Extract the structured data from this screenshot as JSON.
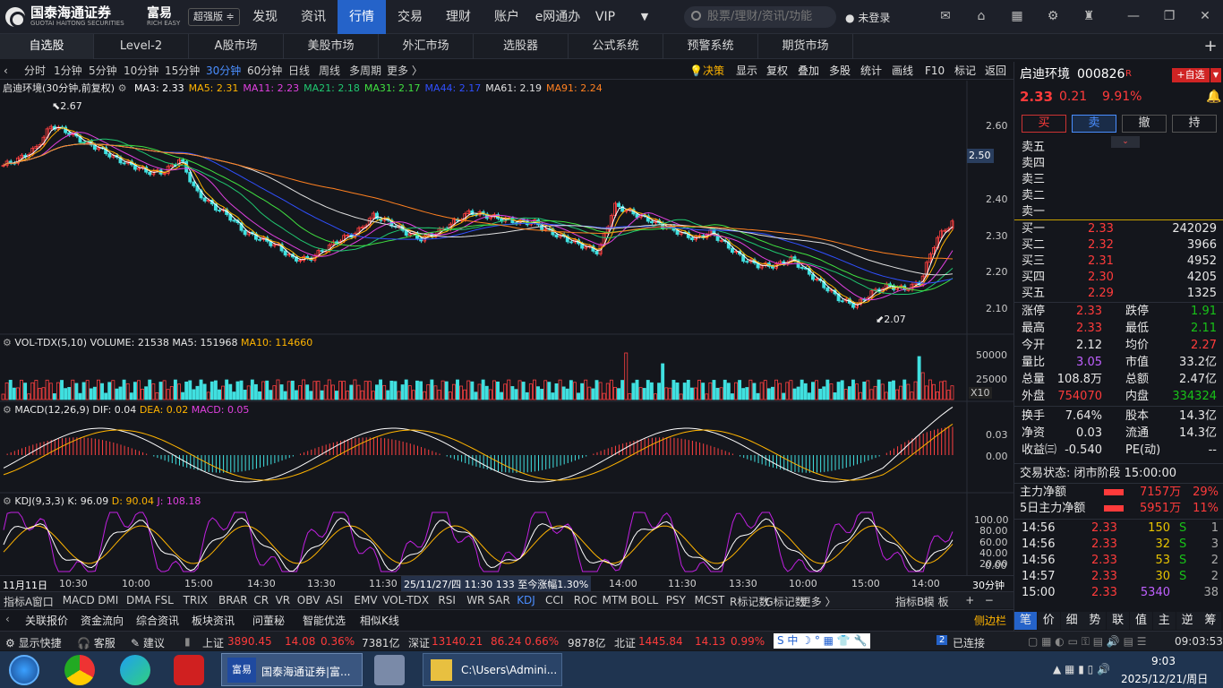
{
  "app": {
    "brand": "国泰海通证券",
    "brand_sub": "GUOTAI HAITONG SECURITIES",
    "brand2": "富易",
    "brand2_sub": "RICH EASY",
    "version": "超强版 ≑"
  },
  "nav": [
    "发现",
    "资讯",
    "行情",
    "交易",
    "理财",
    "账户",
    "e网通办",
    "VIP"
  ],
  "search": {
    "placeholder": "股票/理财/资讯/功能"
  },
  "login": "未登录",
  "tabs": [
    "自选股",
    "Level-2",
    "A股市场",
    "美股市场",
    "外汇市场",
    "选股器",
    "公式系统",
    "预警系统",
    "期货市场"
  ],
  "periods": [
    "分时",
    "1分钟",
    "5分钟",
    "10分钟",
    "15分钟",
    "30分钟",
    "60分钟",
    "日线",
    "周线",
    "多周期",
    "更多 〉"
  ],
  "tools": [
    "决策",
    "显示",
    "复权",
    "叠加",
    "多股",
    "统计",
    "画线",
    "F10",
    "标记",
    "返回"
  ],
  "chart": {
    "title": "启迪环境(30分钟,前复权)",
    "ma": [
      {
        "l": "MA3: 2.33",
        "c": "#ffffff"
      },
      {
        "l": "MA5: 2.31",
        "c": "#ffb400"
      },
      {
        "l": "MA11: 2.23",
        "c": "#e040e0"
      },
      {
        "l": "MA21: 2.18",
        "c": "#20c870"
      },
      {
        "l": "MA31: 2.17",
        "c": "#40e040"
      },
      {
        "l": "MA44: 2.17",
        "c": "#3050ff"
      },
      {
        "l": "MA61: 2.19",
        "c": "#e0e0e0"
      },
      {
        "l": "MA91: 2.24",
        "c": "#ff8020"
      }
    ],
    "high_label": "2.67",
    "low_label": "2.07",
    "current_tag": "2.50",
    "price_ticks": [
      "2.60",
      "2.50",
      "2.40",
      "2.30",
      "2.20",
      "2.10"
    ],
    "vol_legend": "VOL-TDX(5,10)",
    "vol_value": "VOLUME: 21538",
    "vol_ma5": "MA5: 151968",
    "vol_ma10": "MA10: 114660",
    "vol_ticks": [
      "50000",
      "25000"
    ],
    "vol_unit": "X10",
    "macd_legend": "MACD(12,26,9)",
    "macd_dif": "DIF: 0.04",
    "macd_dea": "DEA: 0.02",
    "macd_macd": "MACD: 0.05",
    "macd_ticks": [
      "0.03",
      "0.00"
    ],
    "kdj_legend": "KDJ(9,3,3)",
    "kdj_k": "K: 96.09",
    "kdj_d": "D: 90.04",
    "kdj_j": "J: 108.18",
    "kdj_ticks": [
      "100.00",
      "80.00",
      "60.00",
      "40.00",
      "20.00",
      "0.00"
    ]
  },
  "chart_data": {
    "type": "line",
    "title": "启迪环境(30分钟,前复权)",
    "ylim": [
      2.03,
      2.7
    ],
    "close": [
      2.5,
      2.52,
      2.55,
      2.62,
      2.6,
      2.57,
      2.55,
      2.52,
      2.5,
      2.48,
      2.48,
      2.52,
      2.42,
      2.38,
      2.35,
      2.3,
      2.28,
      2.26,
      2.22,
      2.22,
      2.25,
      2.28,
      2.3,
      2.35,
      2.33,
      2.3,
      2.28,
      2.3,
      2.33,
      2.36,
      2.35,
      2.34,
      2.33,
      2.33,
      2.3,
      2.28,
      2.26,
      2.24,
      2.38,
      2.36,
      2.34,
      2.32,
      2.3,
      2.28,
      2.3,
      2.26,
      2.22,
      2.2,
      2.2,
      2.22,
      2.18,
      2.14,
      2.1,
      2.08,
      2.12,
      2.14,
      2.13,
      2.15,
      2.28,
      2.33
    ]
  },
  "xaxis": [
    "11月11日",
    "10:30",
    "10:00",
    "15:00",
    "14:30",
    "13:30",
    "11:30",
    "25/11/27/四 11:30 133 至今涨幅1.30%",
    "14:00",
    "11:30",
    "13:30",
    "10:00",
    "15:00",
    "14:00",
    "30分钟"
  ],
  "indicators": [
    "指标A",
    "窗口",
    "MACD",
    "DMI",
    "DMA",
    "FSL",
    "TRIX",
    "BRAR",
    "CR",
    "VR",
    "OBV",
    "ASI",
    "EMV",
    "VOL-TDX",
    "RSI",
    "WR",
    "SAR",
    "KDJ",
    "CCI",
    "ROC",
    "MTM",
    "BOLL",
    "PSY",
    "MCST",
    "R标记数",
    "G标记数",
    "更多 〉",
    "指标B",
    "模 板",
    "+",
    "−"
  ],
  "funcs": [
    "关联报价",
    "资金流向",
    "综合资讯",
    "板块资讯",
    "问董秘",
    "智能优选",
    "相似K线"
  ],
  "side_tab": "侧边栏",
  "quote": {
    "name": "启迪环境",
    "code": "000826",
    "flag": "R",
    "add": "+自选",
    "price": "2.33",
    "chg": "0.21",
    "pct": "9.91%",
    "btns": [
      "买",
      "卖",
      "撤",
      "持"
    ],
    "sell": [
      "卖五",
      "卖四",
      "卖三",
      "卖二",
      "卖一"
    ],
    "buy": [
      {
        "n": "买一",
        "p": "2.33",
        "v": "242029"
      },
      {
        "n": "买二",
        "p": "2.32",
        "v": "3966"
      },
      {
        "n": "买三",
        "p": "2.31",
        "v": "4952"
      },
      {
        "n": "买四",
        "p": "2.30",
        "v": "4205"
      },
      {
        "n": "买五",
        "p": "2.29",
        "v": "1325"
      }
    ],
    "stats": [
      [
        {
          "l": "涨停",
          "v": "2.33",
          "c": "red"
        },
        {
          "l": "跌停",
          "v": "1.91",
          "c": "green"
        }
      ],
      [
        {
          "l": "最高",
          "v": "2.33",
          "c": "red"
        },
        {
          "l": "最低",
          "v": "2.11",
          "c": "green"
        }
      ],
      [
        {
          "l": "今开",
          "v": "2.12",
          "c": "white"
        },
        {
          "l": "均价",
          "v": "2.27",
          "c": "red"
        }
      ],
      [
        {
          "l": "量比",
          "v": "3.05",
          "c": "pur"
        },
        {
          "l": "市值",
          "v": "33.2亿",
          "c": "white"
        }
      ],
      [
        {
          "l": "总量",
          "v": "108.8万",
          "c": "white"
        },
        {
          "l": "总额",
          "v": "2.47亿",
          "c": "white"
        }
      ],
      [
        {
          "l": "外盘",
          "v": "754070",
          "c": "red"
        },
        {
          "l": "内盘",
          "v": "334324",
          "c": "green"
        }
      ]
    ],
    "stats2": [
      [
        {
          "l": "换手",
          "v": "7.64%",
          "c": "white"
        },
        {
          "l": "股本",
          "v": "14.3亿",
          "c": "white"
        }
      ],
      [
        {
          "l": "净资",
          "v": "0.03",
          "c": "white"
        },
        {
          "l": "流通",
          "v": "14.3亿",
          "c": "white"
        }
      ],
      [
        {
          "l": "收益㈢",
          "v": "-0.540",
          "c": "white"
        },
        {
          "l": "PE(动)",
          "v": "--",
          "c": "white"
        }
      ]
    ],
    "status": "交易状态: 闭市阶段 15:00:00",
    "flow": [
      {
        "l": "主力净额",
        "v": "7157万",
        "p": "29%"
      },
      {
        "l": "5日主力净额",
        "v": "5951万",
        "p": "11%"
      }
    ],
    "ticks": [
      {
        "t": "14:56",
        "p": "2.33",
        "v": "150",
        "s": "S",
        "n": "1"
      },
      {
        "t": "14:56",
        "p": "2.33",
        "v": "32",
        "s": "S",
        "n": "3"
      },
      {
        "t": "14:56",
        "p": "2.33",
        "v": "53",
        "s": "S",
        "n": "2"
      },
      {
        "t": "14:57",
        "p": "2.33",
        "v": "30",
        "s": "S",
        "n": "2"
      },
      {
        "t": "15:00",
        "p": "2.33",
        "v": "5340",
        "s": "",
        "n": "38"
      }
    ],
    "bottom_tabs": [
      "笔",
      "价",
      "细",
      "势",
      "联",
      "值",
      "主",
      "逆",
      "筹"
    ]
  },
  "status": {
    "show": "显示快捷",
    "service": "客服",
    "suggest": "建议",
    "sh": "上证",
    "sh_v": "3890.45",
    "sh_c": "14.08",
    "sh_p": "0.36%",
    "sh_a": "7381亿",
    "sz": "深证",
    "sz_v": "13140.21",
    "sz_c": "86.24",
    "sz_p": "0.66%",
    "sz_a": "9878亿",
    "bz": "北证",
    "bz_v": "1445.84",
    "bz_c": "14.13",
    "bz_p": "0.99%",
    "conn": "已连接",
    "conn_n": "2",
    "time": "09:03:53"
  },
  "taskbar": {
    "win1": "国泰海通证券|富...",
    "win2": "C:\\Users\\Admini...",
    "clock": "9:03",
    "date": "2025/12/21/周日"
  }
}
